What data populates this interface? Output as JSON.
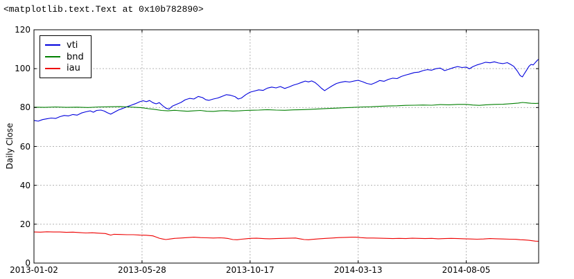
{
  "output_text": "<matplotlib.text.Text at 0x10b782890>",
  "chart_data": {
    "type": "line",
    "title": "",
    "xlabel": "",
    "ylabel": "Daily Close",
    "x_unit": "trading-day index since 2013-01-02",
    "xlim": [
      0,
      467
    ],
    "ylim": [
      0,
      120
    ],
    "grid": true,
    "grid_color": "#b0b0b0",
    "axis_color": "#000000",
    "background": "#ffffff",
    "yticks": [
      0,
      20,
      40,
      60,
      80,
      100,
      120
    ],
    "xticks": [
      {
        "day": 0,
        "label": "2013-01-02"
      },
      {
        "day": 100,
        "label": "2013-05-28"
      },
      {
        "day": 200,
        "label": "2013-10-17"
      },
      {
        "day": 300,
        "label": "2014-03-13"
      },
      {
        "day": 400,
        "label": "2014-08-05"
      }
    ],
    "legend": {
      "position": "upper-left",
      "entries": [
        {
          "label": "vti",
          "color": "#0000dd"
        },
        {
          "label": "bnd",
          "color": "#007f00"
        },
        {
          "label": "iau",
          "color": "#ee0000"
        }
      ]
    },
    "series": [
      {
        "name": "vti",
        "color": "#0000dd",
        "points": [
          [
            0,
            73.3
          ],
          [
            4,
            73.0
          ],
          [
            8,
            73.8
          ],
          [
            12,
            74.2
          ],
          [
            16,
            74.6
          ],
          [
            20,
            74.4
          ],
          [
            24,
            75.3
          ],
          [
            28,
            75.9
          ],
          [
            32,
            75.7
          ],
          [
            36,
            76.4
          ],
          [
            40,
            76.1
          ],
          [
            44,
            77.2
          ],
          [
            48,
            77.8
          ],
          [
            52,
            78.3
          ],
          [
            55,
            77.6
          ],
          [
            58,
            78.5
          ],
          [
            62,
            78.7
          ],
          [
            65,
            78.2
          ],
          [
            68,
            77.3
          ],
          [
            71,
            76.6
          ],
          [
            74,
            77.5
          ],
          [
            78,
            78.7
          ],
          [
            82,
            79.5
          ],
          [
            86,
            80.4
          ],
          [
            90,
            81.2
          ],
          [
            94,
            82.0
          ],
          [
            98,
            83.0
          ],
          [
            101,
            83.5
          ],
          [
            104,
            83.0
          ],
          [
            107,
            83.6
          ],
          [
            110,
            82.5
          ],
          [
            113,
            81.9
          ],
          [
            116,
            82.5
          ],
          [
            119,
            81.0
          ],
          [
            122,
            79.7
          ],
          [
            125,
            79.2
          ],
          [
            128,
            80.7
          ],
          [
            132,
            81.7
          ],
          [
            136,
            82.6
          ],
          [
            140,
            84.0
          ],
          [
            144,
            84.7
          ],
          [
            148,
            84.4
          ],
          [
            152,
            85.7
          ],
          [
            156,
            85.1
          ],
          [
            159,
            84.0
          ],
          [
            162,
            83.7
          ],
          [
            166,
            84.4
          ],
          [
            170,
            84.9
          ],
          [
            174,
            85.7
          ],
          [
            178,
            86.6
          ],
          [
            182,
            86.3
          ],
          [
            186,
            85.6
          ],
          [
            189,
            84.4
          ],
          [
            192,
            84.9
          ],
          [
            196,
            86.6
          ],
          [
            200,
            87.9
          ],
          [
            204,
            88.5
          ],
          [
            208,
            89.1
          ],
          [
            212,
            88.8
          ],
          [
            216,
            90.0
          ],
          [
            220,
            90.5
          ],
          [
            224,
            90.1
          ],
          [
            228,
            90.8
          ],
          [
            232,
            89.8
          ],
          [
            236,
            90.6
          ],
          [
            240,
            91.5
          ],
          [
            244,
            92.2
          ],
          [
            248,
            93.0
          ],
          [
            251,
            93.6
          ],
          [
            254,
            93.2
          ],
          [
            257,
            93.7
          ],
          [
            260,
            92.9
          ],
          [
            263,
            91.5
          ],
          [
            266,
            89.9
          ],
          [
            269,
            88.7
          ],
          [
            272,
            89.8
          ],
          [
            276,
            91.2
          ],
          [
            280,
            92.4
          ],
          [
            284,
            93.0
          ],
          [
            288,
            93.4
          ],
          [
            292,
            93.1
          ],
          [
            296,
            93.6
          ],
          [
            300,
            94.0
          ],
          [
            304,
            93.3
          ],
          [
            308,
            92.4
          ],
          [
            312,
            91.9
          ],
          [
            316,
            92.8
          ],
          [
            320,
            93.9
          ],
          [
            324,
            93.5
          ],
          [
            328,
            94.5
          ],
          [
            332,
            95.1
          ],
          [
            336,
            94.9
          ],
          [
            340,
            96.0
          ],
          [
            344,
            96.7
          ],
          [
            348,
            97.3
          ],
          [
            352,
            98.0
          ],
          [
            356,
            98.2
          ],
          [
            360,
            99.0
          ],
          [
            364,
            99.5
          ],
          [
            368,
            99.2
          ],
          [
            372,
            100.0
          ],
          [
            376,
            100.3
          ],
          [
            380,
            99.0
          ],
          [
            384,
            99.7
          ],
          [
            388,
            100.5
          ],
          [
            392,
            101.1
          ],
          [
            396,
            100.6
          ],
          [
            400,
            100.8
          ],
          [
            403,
            99.9
          ],
          [
            406,
            101.0
          ],
          [
            410,
            101.9
          ],
          [
            414,
            102.6
          ],
          [
            418,
            103.3
          ],
          [
            422,
            103.0
          ],
          [
            426,
            103.5
          ],
          [
            430,
            102.9
          ],
          [
            434,
            102.6
          ],
          [
            438,
            103.1
          ],
          [
            441,
            102.2
          ],
          [
            444,
            101.2
          ],
          [
            447,
            99.0
          ],
          [
            450,
            96.4
          ],
          [
            452,
            95.8
          ],
          [
            454,
            97.6
          ],
          [
            456,
            99.4
          ],
          [
            458,
            101.2
          ],
          [
            460,
            102.2
          ],
          [
            462,
            101.9
          ],
          [
            464,
            103.2
          ],
          [
            466,
            104.4
          ],
          [
            467,
            104.8
          ]
        ]
      },
      {
        "name": "bnd",
        "color": "#007f00",
        "points": [
          [
            0,
            80.2
          ],
          [
            10,
            80.1
          ],
          [
            20,
            80.3
          ],
          [
            30,
            80.1
          ],
          [
            40,
            80.2
          ],
          [
            50,
            80.0
          ],
          [
            60,
            80.3
          ],
          [
            70,
            80.4
          ],
          [
            80,
            80.5
          ],
          [
            88,
            80.3
          ],
          [
            94,
            80.1
          ],
          [
            100,
            79.9
          ],
          [
            106,
            79.4
          ],
          [
            112,
            79.0
          ],
          [
            118,
            78.5
          ],
          [
            124,
            78.3
          ],
          [
            130,
            78.6
          ],
          [
            136,
            78.3
          ],
          [
            142,
            78.1
          ],
          [
            148,
            78.3
          ],
          [
            154,
            78.5
          ],
          [
            160,
            78.1
          ],
          [
            166,
            78.0
          ],
          [
            172,
            78.3
          ],
          [
            178,
            78.4
          ],
          [
            184,
            78.2
          ],
          [
            190,
            78.3
          ],
          [
            196,
            78.5
          ],
          [
            200,
            78.6
          ],
          [
            208,
            78.7
          ],
          [
            216,
            78.9
          ],
          [
            224,
            78.7
          ],
          [
            232,
            78.6
          ],
          [
            240,
            78.8
          ],
          [
            248,
            78.9
          ],
          [
            256,
            79.1
          ],
          [
            264,
            79.3
          ],
          [
            272,
            79.5
          ],
          [
            280,
            79.7
          ],
          [
            288,
            79.9
          ],
          [
            296,
            80.1
          ],
          [
            304,
            80.3
          ],
          [
            312,
            80.4
          ],
          [
            320,
            80.6
          ],
          [
            328,
            80.8
          ],
          [
            336,
            80.9
          ],
          [
            344,
            81.1
          ],
          [
            352,
            81.2
          ],
          [
            360,
            81.3
          ],
          [
            368,
            81.2
          ],
          [
            376,
            81.5
          ],
          [
            384,
            81.4
          ],
          [
            392,
            81.6
          ],
          [
            400,
            81.6
          ],
          [
            406,
            81.3
          ],
          [
            412,
            81.1
          ],
          [
            418,
            81.4
          ],
          [
            426,
            81.6
          ],
          [
            434,
            81.7
          ],
          [
            442,
            82.0
          ],
          [
            448,
            82.3
          ],
          [
            452,
            82.6
          ],
          [
            456,
            82.4
          ],
          [
            460,
            82.2
          ],
          [
            464,
            82.1
          ],
          [
            467,
            82.2
          ]
        ]
      },
      {
        "name": "iau",
        "color": "#ee0000",
        "points": [
          [
            0,
            16.0
          ],
          [
            6,
            15.9
          ],
          [
            12,
            16.1
          ],
          [
            18,
            16.0
          ],
          [
            24,
            16.0
          ],
          [
            30,
            15.8
          ],
          [
            36,
            15.9
          ],
          [
            42,
            15.7
          ],
          [
            48,
            15.5
          ],
          [
            54,
            15.6
          ],
          [
            60,
            15.4
          ],
          [
            66,
            15.2
          ],
          [
            69,
            14.7
          ],
          [
            71,
            14.4
          ],
          [
            74,
            14.8
          ],
          [
            80,
            14.7
          ],
          [
            86,
            14.6
          ],
          [
            92,
            14.6
          ],
          [
            98,
            14.4
          ],
          [
            104,
            14.3
          ],
          [
            110,
            14.0
          ],
          [
            113,
            13.4
          ],
          [
            116,
            12.8
          ],
          [
            119,
            12.4
          ],
          [
            122,
            12.1
          ],
          [
            126,
            12.4
          ],
          [
            130,
            12.7
          ],
          [
            136,
            12.9
          ],
          [
            142,
            13.1
          ],
          [
            148,
            13.3
          ],
          [
            154,
            13.1
          ],
          [
            160,
            13.0
          ],
          [
            166,
            12.9
          ],
          [
            172,
            13.0
          ],
          [
            176,
            12.9
          ],
          [
            180,
            12.6
          ],
          [
            184,
            12.1
          ],
          [
            188,
            12.0
          ],
          [
            192,
            12.3
          ],
          [
            196,
            12.5
          ],
          [
            200,
            12.7
          ],
          [
            206,
            12.8
          ],
          [
            212,
            12.6
          ],
          [
            218,
            12.5
          ],
          [
            224,
            12.6
          ],
          [
            230,
            12.7
          ],
          [
            236,
            12.8
          ],
          [
            242,
            12.9
          ],
          [
            246,
            12.5
          ],
          [
            250,
            12.1
          ],
          [
            254,
            12.0
          ],
          [
            258,
            12.2
          ],
          [
            264,
            12.5
          ],
          [
            270,
            12.7
          ],
          [
            276,
            12.9
          ],
          [
            282,
            13.1
          ],
          [
            288,
            13.2
          ],
          [
            294,
            13.3
          ],
          [
            298,
            13.3
          ],
          [
            302,
            13.1
          ],
          [
            308,
            12.9
          ],
          [
            314,
            12.9
          ],
          [
            320,
            12.8
          ],
          [
            326,
            12.7
          ],
          [
            332,
            12.6
          ],
          [
            338,
            12.7
          ],
          [
            344,
            12.6
          ],
          [
            350,
            12.8
          ],
          [
            356,
            12.7
          ],
          [
            362,
            12.6
          ],
          [
            368,
            12.7
          ],
          [
            374,
            12.5
          ],
          [
            380,
            12.6
          ],
          [
            386,
            12.7
          ],
          [
            392,
            12.6
          ],
          [
            398,
            12.5
          ],
          [
            404,
            12.4
          ],
          [
            410,
            12.3
          ],
          [
            416,
            12.4
          ],
          [
            422,
            12.6
          ],
          [
            428,
            12.5
          ],
          [
            434,
            12.4
          ],
          [
            440,
            12.3
          ],
          [
            446,
            12.2
          ],
          [
            450,
            12.0
          ],
          [
            454,
            11.9
          ],
          [
            458,
            11.7
          ],
          [
            461,
            11.5
          ],
          [
            464,
            11.3
          ],
          [
            467,
            11.2
          ]
        ]
      }
    ]
  }
}
